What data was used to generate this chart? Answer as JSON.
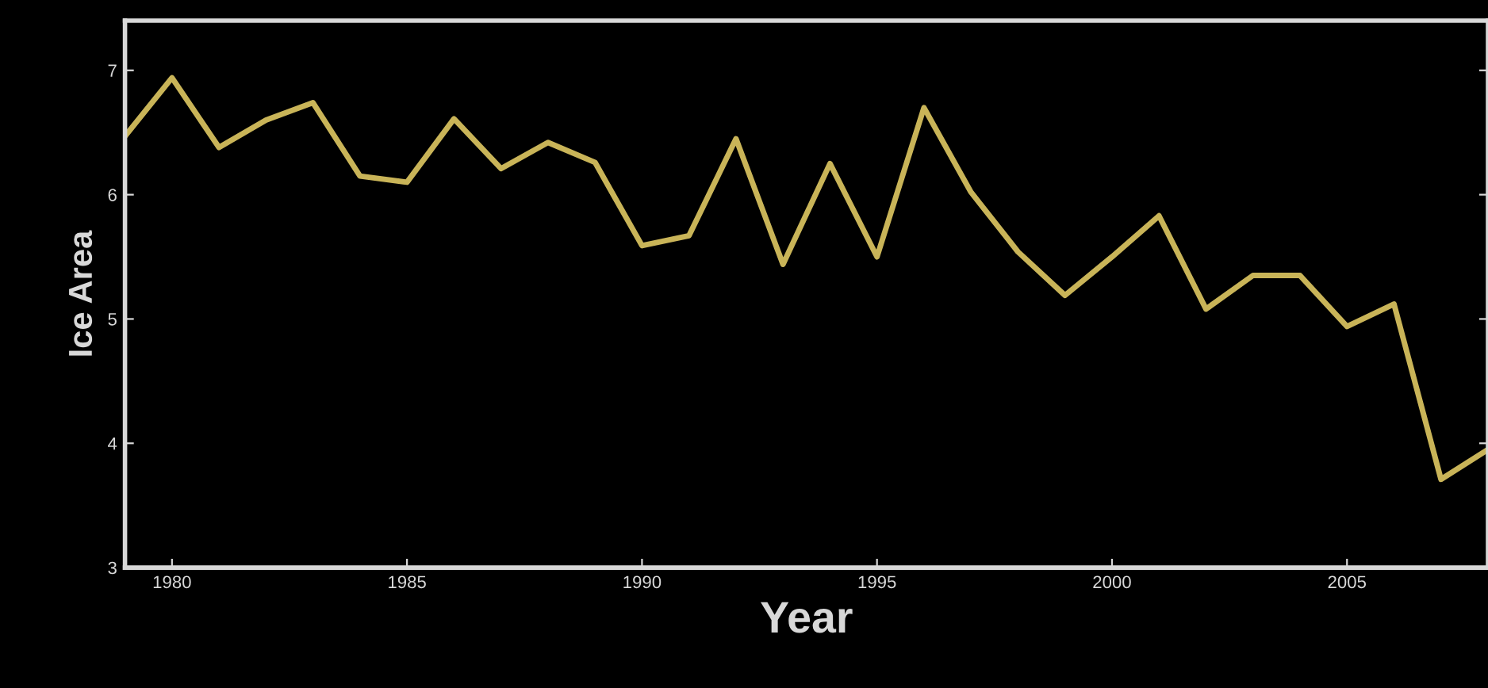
{
  "chart_data": {
    "type": "line",
    "xlabel": "Year",
    "ylabel": "Ice Area",
    "x": [
      1979,
      1980,
      1981,
      1982,
      1983,
      1984,
      1985,
      1986,
      1987,
      1988,
      1989,
      1990,
      1991,
      1992,
      1993,
      1994,
      1995,
      1996,
      1997,
      1998,
      1999,
      2000,
      2001,
      2002,
      2003,
      2004,
      2005,
      2006,
      2007,
      2008
    ],
    "series": [
      {
        "color": "#c9b458",
        "values": [
          6.47,
          6.94,
          6.38,
          6.6,
          6.74,
          6.15,
          6.1,
          6.61,
          6.21,
          6.42,
          6.26,
          5.59,
          5.67,
          6.45,
          5.44,
          6.25,
          5.5,
          6.7,
          6.02,
          5.54,
          5.19,
          5.5,
          5.83,
          5.08,
          5.35,
          5.35,
          4.94,
          5.12,
          3.71,
          3.95
        ]
      }
    ],
    "xlim": [
      1979,
      2008
    ],
    "xticks": [
      1980,
      1985,
      1990,
      1995,
      2000,
      2005
    ],
    "ylim": [
      3,
      7.4
    ],
    "yticks": [
      3,
      4,
      5,
      6,
      7
    ],
    "grid": false,
    "legend": false,
    "marker": "none",
    "line_style": "solid"
  }
}
